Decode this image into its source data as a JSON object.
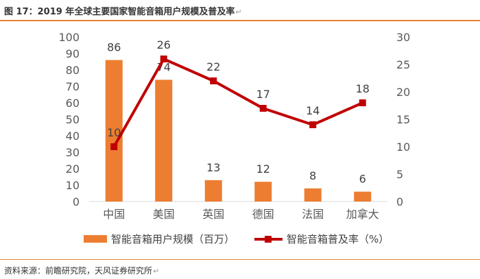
{
  "header": {
    "title": "图 17：2019 年全球主要国家智能音箱用户规模及普及率",
    "para_mark": "↵"
  },
  "footer": {
    "source": "资料来源：前瞻研究院，天风证券研究所",
    "para_mark": "↵"
  },
  "colors": {
    "bar": "#ED7D31",
    "line": "#C00000",
    "accent_rule": "#E8822F"
  },
  "chart_data": {
    "type": "bar",
    "title": "2019 年全球主要国家智能音箱用户规模及普及率",
    "categories": [
      "中国",
      "美国",
      "英国",
      "德国",
      "法国",
      "加拿大"
    ],
    "series": [
      {
        "name": "智能音箱用户规模（百万）",
        "kind": "bar",
        "axis": "left",
        "values": [
          86,
          74,
          13,
          12,
          8,
          6
        ]
      },
      {
        "name": "智能音箱普及率（%）",
        "kind": "line",
        "axis": "right",
        "values": [
          10,
          26,
          22,
          17,
          14,
          18
        ]
      }
    ],
    "left_axis": {
      "ylim": [
        0,
        100
      ],
      "ticks": [
        0,
        10,
        20,
        30,
        40,
        50,
        60,
        70,
        80,
        90,
        100
      ]
    },
    "right_axis": {
      "ylim": [
        0,
        30
      ],
      "ticks": [
        0,
        5,
        10,
        15,
        20,
        25,
        30
      ]
    },
    "grid": false,
    "legend": "bottom"
  }
}
